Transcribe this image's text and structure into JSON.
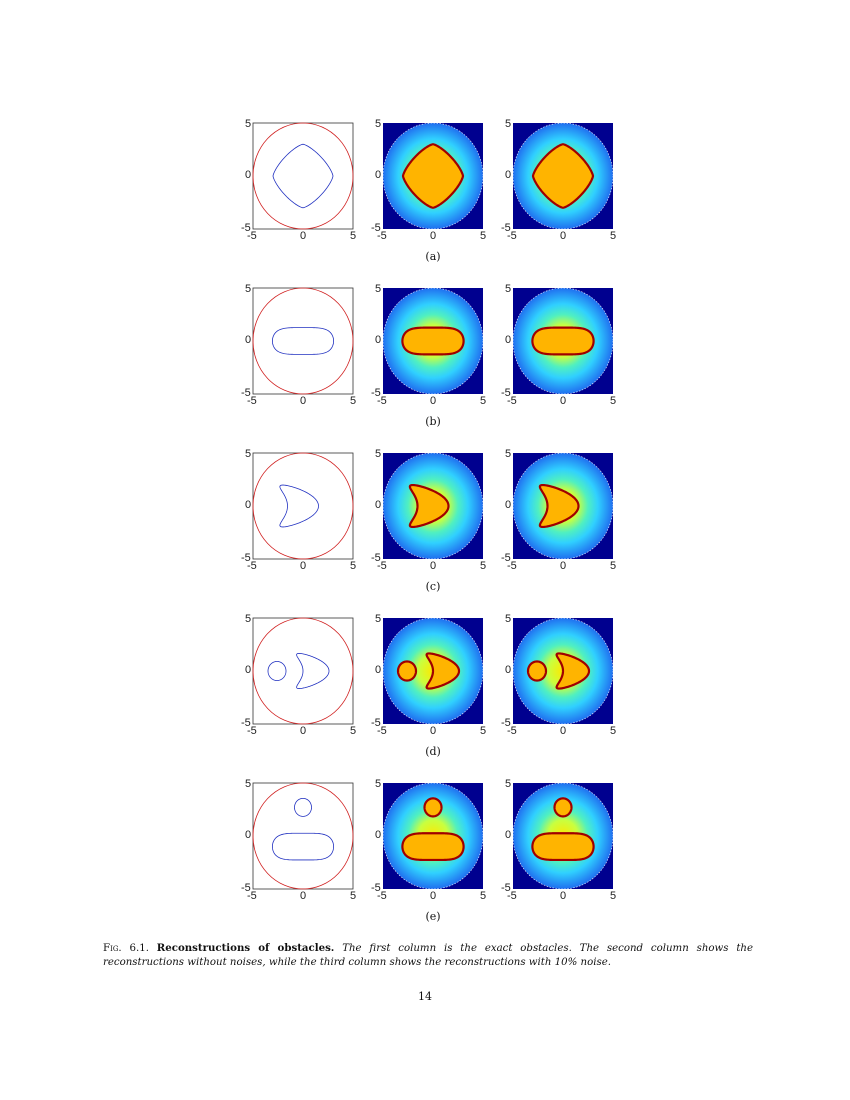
{
  "figure": {
    "axis_ticks": {
      "x": [
        "-5",
        "0",
        "5"
      ],
      "y": [
        "5",
        "0",
        "-5"
      ]
    },
    "rows": [
      {
        "label": "(a)",
        "obstacle": "rounded-square"
      },
      {
        "label": "(b)",
        "obstacle": "peanut"
      },
      {
        "label": "(c)",
        "obstacle": "kite"
      },
      {
        "label": "(d)",
        "obstacle": "circle-and-kite"
      },
      {
        "label": "(e)",
        "obstacle": "circle-and-peanut"
      }
    ],
    "columns": [
      "exact obstacles",
      "reconstruction without noise",
      "reconstruction with 10% noise"
    ],
    "colors": {
      "boundary_circle": "#d02020",
      "obstacle_curve": "#2030c0",
      "colormap_low": "#00008f",
      "colormap_high": "#a00000"
    }
  },
  "caption": {
    "fig_label": "Fig. 6.1.",
    "title": "Reconstructions of obstacles.",
    "text": "The first column is the exact obstacles. The second column shows the reconstructions without noises, while the third column shows the reconstructions with 10% noise."
  },
  "page_number": "14"
}
